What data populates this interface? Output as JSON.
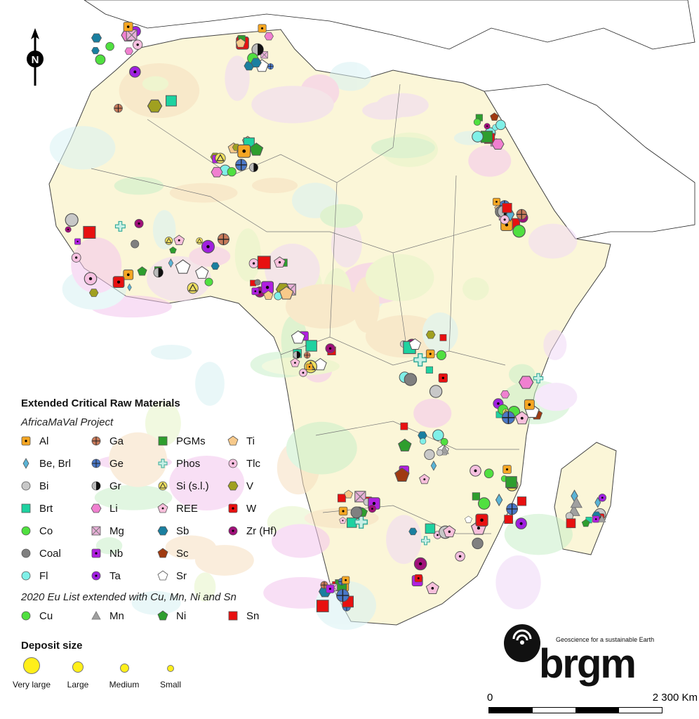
{
  "legend": {
    "title": "Extended Critical Raw Materials",
    "subtitle": "AfricaMaVal Project",
    "items": [
      {
        "label": "Al",
        "shape": "square-dot",
        "color": "#f5a623"
      },
      {
        "label": "Ga",
        "shape": "circle-cross",
        "color": "#c87a5a"
      },
      {
        "label": "PGMs",
        "shape": "square",
        "color": "#2e9e2e"
      },
      {
        "label": "Ti",
        "shape": "pentagon",
        "color": "#f7c98a"
      },
      {
        "label": "Be, Brl",
        "shape": "diamond",
        "color": "#5ab4d6"
      },
      {
        "label": "Ge",
        "shape": "circle-cross",
        "color": "#4a78c8"
      },
      {
        "label": "Phos",
        "shape": "cross",
        "color": "#c8f0e6"
      },
      {
        "label": "Tlc",
        "shape": "circle-dot",
        "color": "#f5c0e0"
      },
      {
        "label": "Bi",
        "shape": "circle",
        "color": "#c8c8c8"
      },
      {
        "label": "Gr",
        "shape": "half-circle",
        "color": "#111111"
      },
      {
        "label": "Si (s.l.)",
        "shape": "circle-triangle",
        "color": "#f0e060"
      },
      {
        "label": "V",
        "shape": "hexagon",
        "color": "#a0a020"
      },
      {
        "label": "Brt",
        "shape": "square",
        "color": "#1ed2a0"
      },
      {
        "label": "Li",
        "shape": "hexagon",
        "color": "#f080d0"
      },
      {
        "label": "REE",
        "shape": "pentagon-dot",
        "color": "#f8c0dc"
      },
      {
        "label": "W",
        "shape": "square-dot",
        "color": "#e81010"
      },
      {
        "label": "Co",
        "shape": "circle",
        "color": "#50e040"
      },
      {
        "label": "Mg",
        "shape": "square-x",
        "color": "#e8b0d8"
      },
      {
        "label": "Sb",
        "shape": "hexagon",
        "color": "#1a7fa0"
      },
      {
        "label": "Zr (Hf)",
        "shape": "circle-dot",
        "color": "#a0107a"
      },
      {
        "label": "Coal",
        "shape": "circle",
        "color": "#808080"
      },
      {
        "label": "Nb",
        "shape": "square-dot",
        "color": "#b020e0"
      },
      {
        "label": "Sc",
        "shape": "pentagon",
        "color": "#a03a10"
      },
      {
        "label": "",
        "shape": "none",
        "color": ""
      },
      {
        "label": "Fl",
        "shape": "circle",
        "color": "#80f0e8"
      },
      {
        "label": "Ta",
        "shape": "circle-dot",
        "color": "#a020e0"
      },
      {
        "label": "Sr",
        "shape": "pentagon",
        "color": "#ffffff"
      },
      {
        "label": "",
        "shape": "none",
        "color": ""
      }
    ],
    "eu_subtitle": "2020 Eu List extended with Cu, Mn, Ni and Sn",
    "eu_items": [
      {
        "label": "Cu",
        "shape": "circle",
        "color": "#50e040"
      },
      {
        "label": "Mn",
        "shape": "triangle",
        "color": "#a0a0a0"
      },
      {
        "label": "Ni",
        "shape": "pentagon",
        "color": "#2e9e2e"
      },
      {
        "label": "Sn",
        "shape": "square",
        "color": "#e81010"
      }
    ],
    "deposit_title": "Deposit size",
    "sizes": [
      "Very large",
      "Large",
      "Medium",
      "Small"
    ]
  },
  "logo": {
    "name": "brgm",
    "tagline": "Geoscience for a sustainable Earth"
  },
  "scale_bar": {
    "start": "0",
    "end": "2 300 Km"
  },
  "north_arrow": {
    "label": "N"
  }
}
